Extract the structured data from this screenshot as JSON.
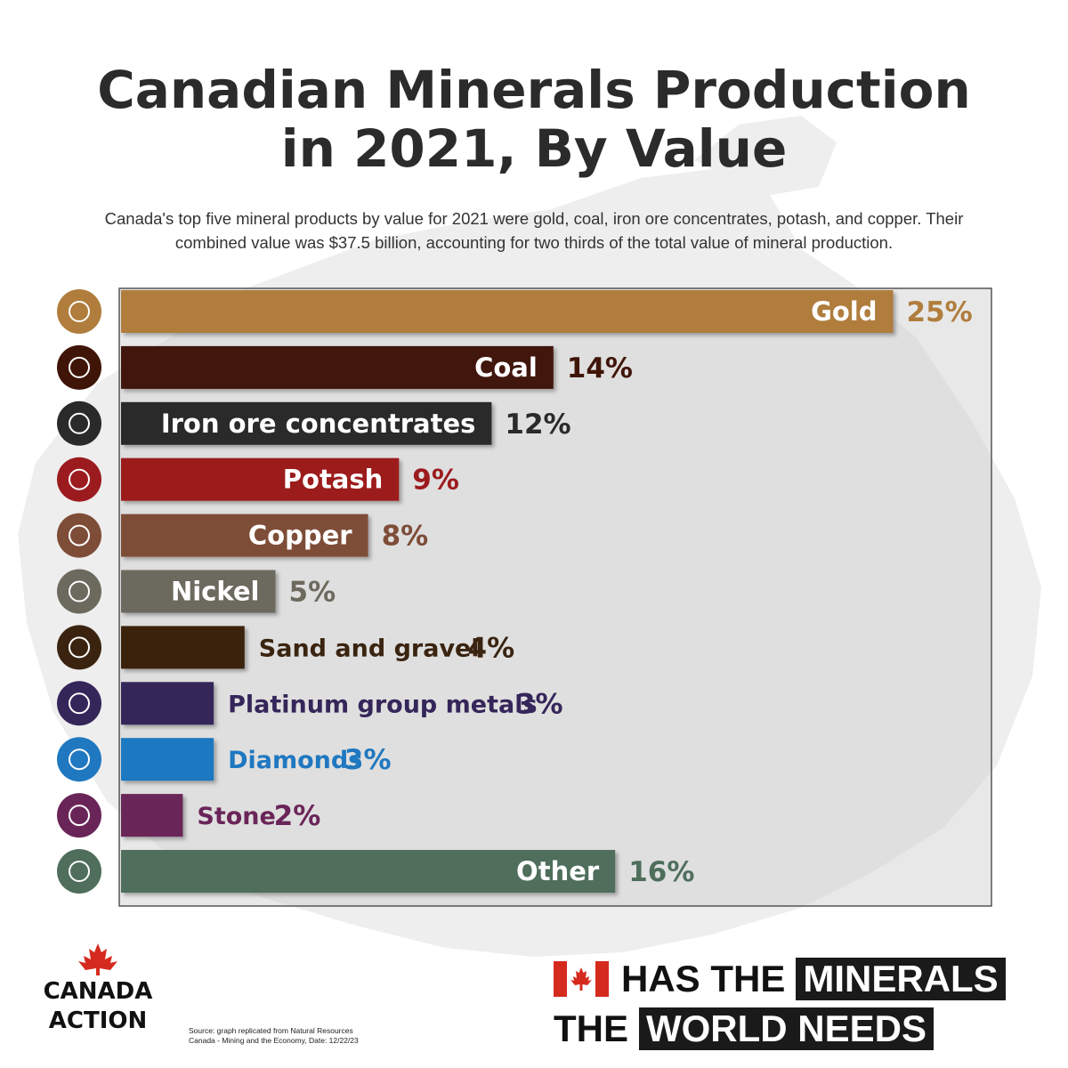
{
  "header": {
    "title_line1": "Canadian Minerals Production",
    "title_line2": "in 2021, By Value",
    "subtitle_line1": "Canada's top five mineral products by value for 2021 were gold, coal, iron ore concentrates, potash, and copper. Their",
    "subtitle_line2": "combined value was $37.5 billion, accounting for two thirds of the total value of mineral production."
  },
  "chart_data": {
    "type": "bar",
    "orientation": "horizontal",
    "categories": [
      "Gold",
      "Coal",
      "Iron ore concentrates",
      "Potash",
      "Copper",
      "Nickel",
      "Sand and gravel",
      "Platinum group metals",
      "Diamonds",
      "Stone",
      "Other"
    ],
    "values": [
      25,
      14,
      12,
      9,
      8,
      5,
      4,
      3,
      3,
      2,
      16
    ],
    "value_labels": [
      "25%",
      "14%",
      "12%",
      "9%",
      "8%",
      "5%",
      "4%",
      "3%",
      "3%",
      "2%",
      "16%"
    ],
    "label_inside": [
      true,
      true,
      true,
      true,
      true,
      true,
      false,
      false,
      false,
      false,
      true
    ],
    "colors": [
      "#b07d3d",
      "#3f1508",
      "#2a2a2a",
      "#9c1b1f",
      "#7e4d38",
      "#6c6a5e",
      "#3a2410",
      "#35265a",
      "#1f78c0",
      "#6a2558",
      "#4f6e5c"
    ],
    "icons": [
      "gold-nugget-icon",
      "coal-icon",
      "iron-ore-icon",
      "potash-molecule-icon",
      "copper-wire-spool-icon",
      "battery-icon",
      "sand-gravel-pile-icon",
      "platinum-bars-icon",
      "diamond-icon",
      "stone-icon",
      "hammers-icon"
    ],
    "xlim": [
      0,
      25
    ],
    "grid": false,
    "legend": "none"
  },
  "footer": {
    "logo_line1": "CANADA",
    "logo_line2": "ACTION",
    "source_line1": "Source: graph replicated from Natural Resources",
    "source_line2": "Canada - Mining and the Economy, Date: 12/22/23",
    "tagline": {
      "row1_plain": "HAS THE",
      "row1_box": "MINERALS",
      "row2_plain": "THE",
      "row2_box": "WORLD NEEDS"
    },
    "colors": {
      "flag_red": "#d52b1e",
      "dark": "#1a1a1a"
    }
  }
}
